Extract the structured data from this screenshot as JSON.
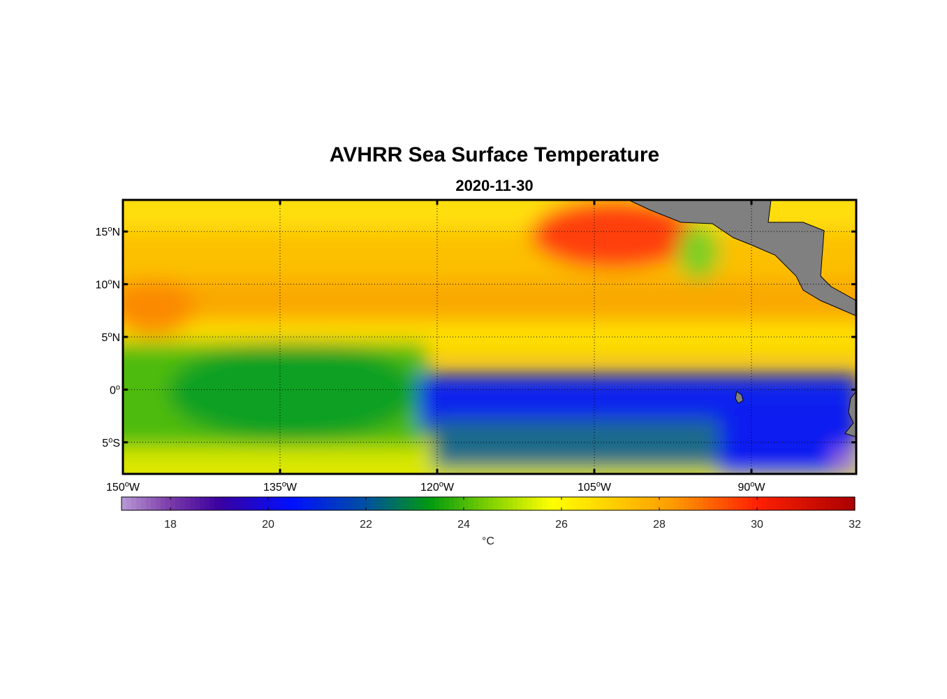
{
  "title": "AVHRR Sea Surface Temperature",
  "subtitle": "2020-11-30",
  "map": {
    "lon_range": [
      -150,
      -80
    ],
    "lat_range": [
      -8,
      18
    ],
    "grid": true,
    "land_color": "#808080",
    "lat_ticks": [
      {
        "value": 15,
        "num": "15",
        "hemi": "N"
      },
      {
        "value": 10,
        "num": "10",
        "hemi": "N"
      },
      {
        "value": 5,
        "num": "5",
        "hemi": "N"
      },
      {
        "value": 0,
        "num": "0",
        "hemi": ""
      },
      {
        "value": -5,
        "num": "5",
        "hemi": "S"
      }
    ],
    "lon_ticks": [
      {
        "value": -150,
        "num": "150",
        "hemi": "W"
      },
      {
        "value": -135,
        "num": "135",
        "hemi": "W"
      },
      {
        "value": -120,
        "num": "120",
        "hemi": "W"
      },
      {
        "value": -105,
        "num": "105",
        "hemi": "W"
      },
      {
        "value": -90,
        "num": "90",
        "hemi": "W"
      }
    ]
  },
  "colorbar": {
    "min": 17,
    "max": 32,
    "ticks": [
      18,
      20,
      22,
      24,
      26,
      28,
      30,
      32
    ],
    "unit": "°C",
    "color_stops": [
      {
        "value": 17,
        "color": "#b89ad6"
      },
      {
        "value": 18,
        "color": "#7a3aa8"
      },
      {
        "value": 19,
        "color": "#3a00a0"
      },
      {
        "value": 20.5,
        "color": "#0010ff"
      },
      {
        "value": 22,
        "color": "#0050a0"
      },
      {
        "value": 23.3,
        "color": "#009a10"
      },
      {
        "value": 24.5,
        "color": "#7ccf00"
      },
      {
        "value": 25.8,
        "color": "#ffff00"
      },
      {
        "value": 27,
        "color": "#ffd000"
      },
      {
        "value": 28.3,
        "color": "#ff9a00"
      },
      {
        "value": 30,
        "color": "#ff2000"
      },
      {
        "value": 32,
        "color": "#aa0000"
      }
    ]
  }
}
